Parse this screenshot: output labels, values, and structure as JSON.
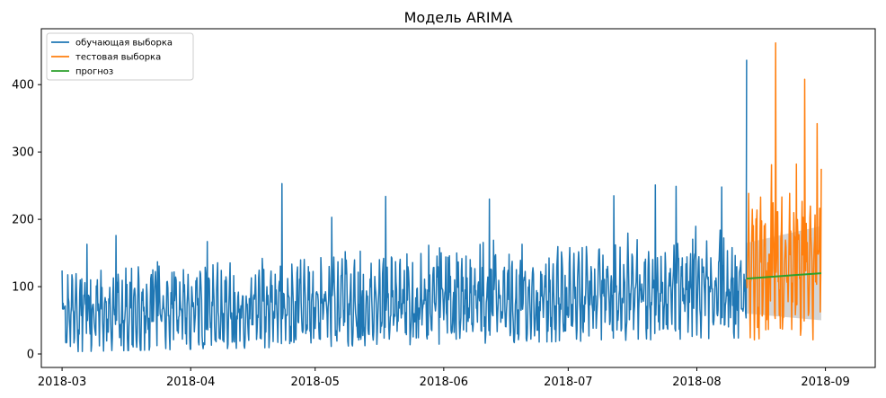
{
  "chart_data": {
    "type": "line",
    "title": "Модель ARIMA",
    "xlabel": "",
    "ylabel": "",
    "x_ticks": [
      "2018-03",
      "2018-04",
      "2018-05",
      "2018-06",
      "2018-07",
      "2018-08",
      "2018-09"
    ],
    "y_ticks": [
      0,
      100,
      200,
      300,
      400
    ],
    "xlim": [
      "2018-02-24",
      "2018-09-13"
    ],
    "ylim": [
      -20,
      483
    ],
    "grid": false,
    "legend_position": "upper-left",
    "series": [
      {
        "name": "обучающая выборка",
        "color": "#1f77b4",
        "x_range": [
          "2018-03-01",
          "2018-08-13"
        ],
        "baseline_start": 58,
        "baseline_end": 95,
        "typical_min_start": 5,
        "typical_min_end": 40,
        "typical_max_start": 115,
        "typical_max_end": 190,
        "spikes": [
          {
            "x": "2018-03-01",
            "y": 124
          },
          {
            "x": "2018-03-07",
            "y": 163
          },
          {
            "x": "2018-03-14",
            "y": 176
          },
          {
            "x": "2018-03-24",
            "y": 137
          },
          {
            "x": "2018-04-05",
            "y": 167
          },
          {
            "x": "2018-04-23",
            "y": 253
          },
          {
            "x": "2018-05-05",
            "y": 203
          },
          {
            "x": "2018-05-18",
            "y": 234
          },
          {
            "x": "2018-06-12",
            "y": 230
          },
          {
            "x": "2018-07-12",
            "y": 235
          },
          {
            "x": "2018-07-22",
            "y": 251
          },
          {
            "x": "2018-07-27",
            "y": 249
          },
          {
            "x": "2018-08-07",
            "y": 248
          },
          {
            "x": "2018-08-13",
            "y": 437
          }
        ]
      },
      {
        "name": "тестовая выборка",
        "color": "#ff7f0e",
        "x_range": [
          "2018-08-13",
          "2018-08-31"
        ],
        "baseline": 125,
        "typical_min": 35,
        "typical_max": 230,
        "spikes": [
          {
            "x": "2018-08-19",
            "y": 281
          },
          {
            "x": "2018-08-20",
            "y": 462
          },
          {
            "x": "2018-08-25",
            "y": 282
          },
          {
            "x": "2018-08-27",
            "y": 408
          },
          {
            "x": "2018-08-30",
            "y": 342
          },
          {
            "x": "2018-08-31",
            "y": 275
          }
        ]
      },
      {
        "name": "прогноз",
        "color": "#2ca02c",
        "x": [
          "2018-08-13",
          "2018-08-31"
        ],
        "values": [
          112,
          120
        ]
      }
    ],
    "confidence_interval": {
      "color": "#b0b0b0",
      "x": [
        "2018-08-13",
        "2018-08-31"
      ],
      "lower": [
        60,
        50
      ],
      "upper": [
        165,
        190
      ]
    }
  }
}
